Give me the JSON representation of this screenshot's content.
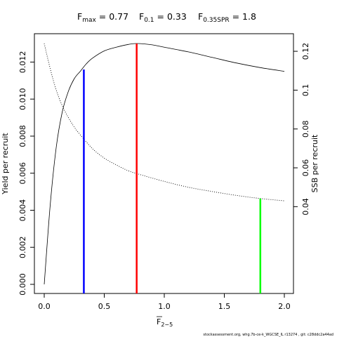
{
  "chart_data": {
    "type": "line",
    "title_terms": [
      {
        "base": "F",
        "sub": "max",
        "value": "0.77"
      },
      {
        "base": "F",
        "sub": "0.1",
        "value": "0.33"
      },
      {
        "base": "F",
        "sub": "0.35SPR",
        "value": "1.8"
      }
    ],
    "xlabel": {
      "base": "F",
      "sub": "2−5"
    },
    "ylabel_left": "Yield per recruit",
    "ylabel_right": "SSB per recruit",
    "xlim": [
      0,
      2
    ],
    "ylim_left": [
      0,
      0.013
    ],
    "ylim_right": [
      0,
      0.124
    ],
    "x_ticks": [
      0,
      0.5,
      1,
      1.5,
      2
    ],
    "x_tick_labels": [
      "0.0",
      "0.5",
      "1.0",
      "1.5",
      "2.0"
    ],
    "y_left_ticks": [
      0,
      0.002,
      0.004,
      0.006,
      0.008,
      0.01,
      0.012
    ],
    "y_left_tick_labels": [
      "0.000",
      "0.002",
      "0.004",
      "0.006",
      "0.008",
      "0.010",
      "0.012"
    ],
    "y_right_ticks": [
      0.04,
      0.06,
      0.08,
      0.1,
      0.12
    ],
    "y_right_tick_labels": [
      "0.04",
      "0.06",
      "0.08",
      "0.1",
      "0.12"
    ],
    "series": [
      {
        "axis": "left",
        "style": "solid",
        "color": "#000000",
        "x": [
          0,
          0.05,
          0.1,
          0.15,
          0.2,
          0.25,
          0.3,
          0.35,
          0.4,
          0.5,
          0.6,
          0.7,
          0.77,
          0.9,
          1.0,
          1.2,
          1.4,
          1.6,
          1.8,
          2.0
        ],
        "y": [
          0.0,
          0.0043,
          0.0074,
          0.0093,
          0.0104,
          0.0111,
          0.0115,
          0.0119,
          0.0122,
          0.0126,
          0.0128,
          0.01295,
          0.013,
          0.01293,
          0.0128,
          0.01255,
          0.01225,
          0.01195,
          0.0117,
          0.0115
        ]
      },
      {
        "axis": "right",
        "style": "dotted",
        "color": "#000000",
        "x": [
          0,
          0.05,
          0.1,
          0.15,
          0.2,
          0.25,
          0.3,
          0.4,
          0.5,
          0.6,
          0.7,
          0.8,
          1.0,
          1.2,
          1.4,
          1.6,
          1.8,
          2.0
        ],
        "y": [
          0.124,
          0.111,
          0.1,
          0.092,
          0.086,
          0.081,
          0.077,
          0.07,
          0.065,
          0.0615,
          0.0585,
          0.0565,
          0.053,
          0.05,
          0.0478,
          0.0458,
          0.0442,
          0.043
        ]
      }
    ],
    "reference_lines": [
      {
        "x": 0.33,
        "axis": "left",
        "y_top": 0.0116,
        "color": "#0000ff"
      },
      {
        "x": 0.77,
        "axis": "left",
        "y_top": 0.013,
        "color": "#ff0000"
      },
      {
        "x": 1.8,
        "axis": "right",
        "y_top": 0.0442,
        "color": "#00ff00"
      }
    ],
    "grid": false,
    "legend": "none"
  },
  "footer_text": "stockassessment.org, whg.7b-ce-k_WGCSE_IL r13274 , git: c28ddc2a44ad"
}
